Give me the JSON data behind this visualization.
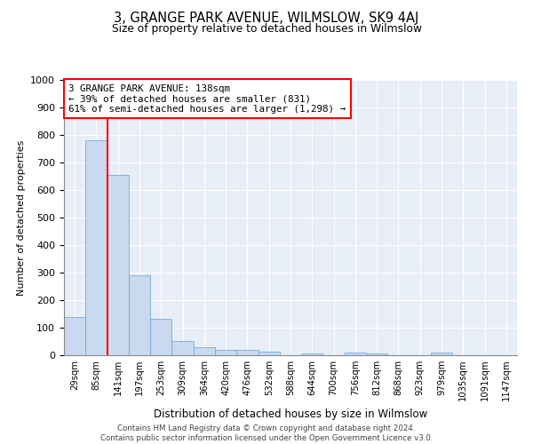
{
  "title": "3, GRANGE PARK AVENUE, WILMSLOW, SK9 4AJ",
  "subtitle": "Size of property relative to detached houses in Wilmslow",
  "xlabel": "Distribution of detached houses by size in Wilmslow",
  "ylabel": "Number of detached properties",
  "bar_color": "#c8d9f0",
  "bar_edge_color": "#6aa0cc",
  "background_color": "#e8eef8",
  "categories": [
    "29sqm",
    "85sqm",
    "141sqm",
    "197sqm",
    "253sqm",
    "309sqm",
    "364sqm",
    "420sqm",
    "476sqm",
    "532sqm",
    "588sqm",
    "644sqm",
    "700sqm",
    "756sqm",
    "812sqm",
    "868sqm",
    "923sqm",
    "979sqm",
    "1035sqm",
    "1091sqm",
    "1147sqm"
  ],
  "values": [
    140,
    780,
    655,
    290,
    133,
    52,
    28,
    20,
    20,
    13,
    0,
    8,
    0,
    11,
    8,
    0,
    0,
    10,
    0,
    0,
    0
  ],
  "ylim": [
    0,
    1000
  ],
  "yticks": [
    0,
    100,
    200,
    300,
    400,
    500,
    600,
    700,
    800,
    900,
    1000
  ],
  "vline_after_index": 1,
  "annotation_line1": "3 GRANGE PARK AVENUE: 138sqm",
  "annotation_line2": "← 39% of detached houses are smaller (831)",
  "annotation_line3": "61% of semi-detached houses are larger (1,298) →",
  "footnote_line1": "Contains HM Land Registry data © Crown copyright and database right 2024.",
  "footnote_line2": "Contains public sector information licensed under the Open Government Licence v3.0."
}
